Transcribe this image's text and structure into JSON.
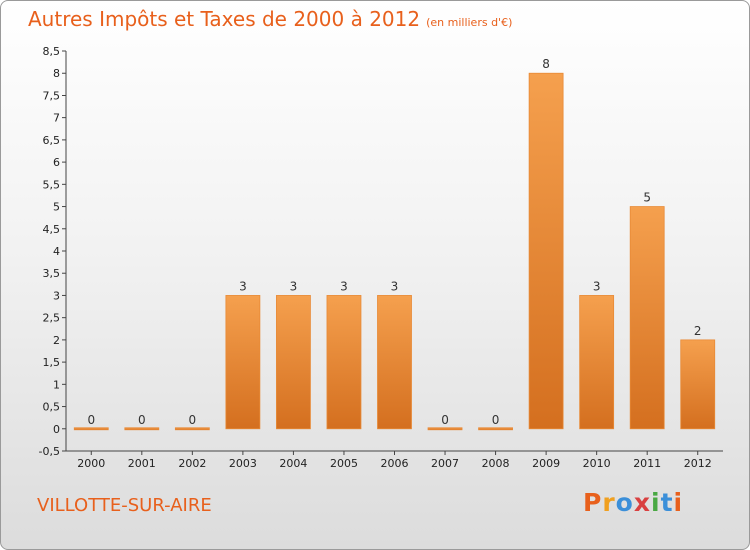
{
  "header": {
    "title": "Autres Impôts et Taxes de 2000 à 2012",
    "unit": "(en milliers d'€)"
  },
  "footer": {
    "commune": "VILLOTTE-SUR-AIRE",
    "logo_text": "Proxiti",
    "logo_colors": [
      "#e8601c",
      "#f0a020",
      "#3b8fd9",
      "#d94040",
      "#49a843",
      "#3b8fd9",
      "#e8601c"
    ]
  },
  "chart_data": {
    "type": "bar",
    "categories": [
      "2000",
      "2001",
      "2002",
      "2003",
      "2004",
      "2005",
      "2006",
      "2007",
      "2008",
      "2009",
      "2010",
      "2011",
      "2012"
    ],
    "values": [
      0,
      0,
      0,
      3,
      3,
      3,
      3,
      0,
      0,
      8,
      3,
      5,
      2
    ],
    "data_labels": [
      "0",
      "0",
      "0",
      "3",
      "3",
      "3",
      "3",
      "0",
      "0",
      "8",
      "3",
      "5",
      "2"
    ],
    "y_ticks": [
      "-0,5",
      "0",
      "0,5",
      "1",
      "1,5",
      "2",
      "2,5",
      "3",
      "3,5",
      "4",
      "4,5",
      "5",
      "5,5",
      "6",
      "6,5",
      "7",
      "7,5",
      "8",
      "8,5"
    ],
    "ylim": [
      -0.5,
      8.5
    ],
    "grid": false,
    "bar_color": "#f5a04e",
    "bar_color_dark": "#d46f1f"
  }
}
